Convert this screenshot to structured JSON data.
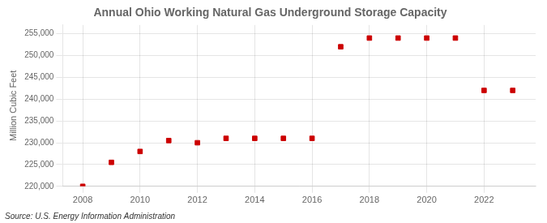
{
  "chart_data": {
    "type": "scatter",
    "title": "Annual Ohio Working Natural Gas Underground Storage Capacity",
    "ylabel": "Million Cubic Feet",
    "annotations": [
      "Source: U.S. Energy Information Administration"
    ],
    "x": [
      2008,
      2009,
      2010,
      2011,
      2012,
      2013,
      2014,
      2015,
      2016,
      2017,
      2018,
      2019,
      2020,
      2021,
      2022,
      2023
    ],
    "values": [
      220000,
      225500,
      228000,
      230500,
      230000,
      231000,
      231000,
      231000,
      231000,
      252000,
      254000,
      254000,
      254000,
      254000,
      242000,
      242000
    ],
    "color": "#cc0000",
    "marker": "square",
    "xlim": [
      2007.3,
      2023.8
    ],
    "xticks": [
      2008,
      2010,
      2012,
      2014,
      2016,
      2018,
      2020,
      2022
    ],
    "ylim": [
      220000,
      257000
    ],
    "yticks": [
      {
        "value": 220000,
        "label": "220,000"
      },
      {
        "value": 225000,
        "label": "225,000"
      },
      {
        "value": 230000,
        "label": "230,000"
      },
      {
        "value": 235000,
        "label": "235,000"
      },
      {
        "value": 240000,
        "label": "240,000"
      },
      {
        "value": 245000,
        "label": "245,000"
      },
      {
        "value": 250000,
        "label": "250,000"
      },
      {
        "value": 255000,
        "label": "255,000"
      }
    ],
    "grid": true
  }
}
